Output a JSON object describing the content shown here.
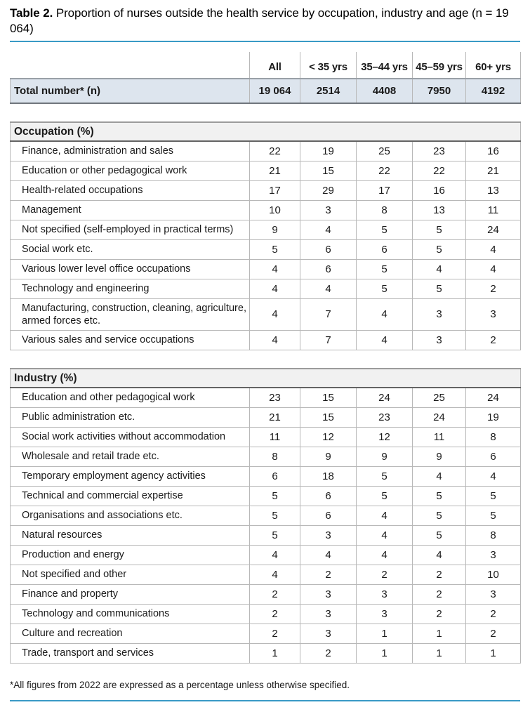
{
  "caption": {
    "label": "Table 2.",
    "text": " Proportion of nurses outside the health service by occupation, industry and age (n = 19 064)"
  },
  "colors": {
    "accent": "#3a9ac6",
    "total_row_bg": "#dde5ee",
    "section_header_bg": "#f1f1f1"
  },
  "table": {
    "columns": [
      "All",
      "< 35 yrs",
      "35–44 yrs",
      "45–59 yrs",
      "60+ yrs"
    ],
    "total_row": {
      "label": "Total number* (n)",
      "values": [
        "19 064",
        "2514",
        "4408",
        "7950",
        "4192"
      ]
    },
    "sections": [
      {
        "header": "Occupation (%)",
        "rows": [
          {
            "label": "Finance, administration and sales",
            "values": [
              "22",
              "19",
              "25",
              "23",
              "16"
            ]
          },
          {
            "label": "Education or other pedagogical work",
            "values": [
              "21",
              "15",
              "22",
              "22",
              "21"
            ]
          },
          {
            "label": "Health-related occupations",
            "values": [
              "17",
              "29",
              "17",
              "16",
              "13"
            ]
          },
          {
            "label": "Management",
            "values": [
              "10",
              "3",
              "8",
              "13",
              "11"
            ]
          },
          {
            "label": "Not specified (self-employed in practical terms)",
            "values": [
              "9",
              "4",
              "5",
              "5",
              "24"
            ]
          },
          {
            "label": "Social work etc.",
            "values": [
              "5",
              "6",
              "6",
              "5",
              "4"
            ]
          },
          {
            "label": "Various lower level office occupations",
            "values": [
              "4",
              "6",
              "5",
              "4",
              "4"
            ]
          },
          {
            "label": "Technology and engineering",
            "values": [
              "4",
              "4",
              "5",
              "5",
              "2"
            ]
          },
          {
            "label": "Manufacturing, construction, cleaning, agriculture, armed forces etc.",
            "values": [
              "4",
              "7",
              "4",
              "3",
              "3"
            ]
          },
          {
            "label": "Various sales and service occupations",
            "values": [
              "4",
              "7",
              "4",
              "3",
              "2"
            ]
          }
        ]
      },
      {
        "header": "Industry (%)",
        "rows": [
          {
            "label": "Education and other pedagogical work",
            "values": [
              "23",
              "15",
              "24",
              "25",
              "24"
            ]
          },
          {
            "label": "Public administration etc.",
            "values": [
              "21",
              "15",
              "23",
              "24",
              "19"
            ]
          },
          {
            "label": "Social work activities without accommodation",
            "values": [
              "11",
              "12",
              "12",
              "11",
              "8"
            ]
          },
          {
            "label": "Wholesale and retail trade etc.",
            "values": [
              "8",
              "9",
              "9",
              "9",
              "6"
            ]
          },
          {
            "label": "Temporary employment agency activities",
            "values": [
              "6",
              "18",
              "5",
              "4",
              "4"
            ]
          },
          {
            "label": "Technical and commercial expertise",
            "values": [
              "5",
              "6",
              "5",
              "5",
              "5"
            ]
          },
          {
            "label": "Organisations and associations etc.",
            "values": [
              "5",
              "6",
              "4",
              "5",
              "5"
            ]
          },
          {
            "label": "Natural resources",
            "values": [
              "5",
              "3",
              "4",
              "5",
              "8"
            ]
          },
          {
            "label": "Production and energy",
            "values": [
              "4",
              "4",
              "4",
              "4",
              "3"
            ]
          },
          {
            "label": "Not specified and other",
            "values": [
              "4",
              "2",
              "2",
              "2",
              "10"
            ]
          },
          {
            "label": "Finance and property",
            "values": [
              "2",
              "3",
              "3",
              "2",
              "3"
            ]
          },
          {
            "label": "Technology and communications",
            "values": [
              "2",
              "3",
              "3",
              "2",
              "2"
            ]
          },
          {
            "label": "Culture and recreation",
            "values": [
              "2",
              "3",
              "1",
              "1",
              "2"
            ]
          },
          {
            "label": "Trade, transport and services",
            "values": [
              "1",
              "2",
              "1",
              "1",
              "1"
            ]
          }
        ]
      }
    ],
    "footnote": "*All figures from 2022 are expressed as a percentage unless otherwise specified."
  }
}
